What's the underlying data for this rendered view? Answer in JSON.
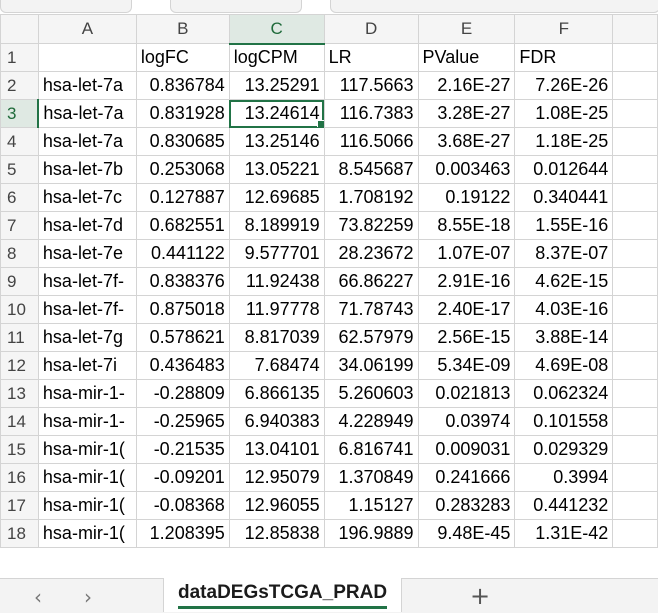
{
  "columns": [
    "A",
    "B",
    "C",
    "D",
    "E",
    "F"
  ],
  "active_cell": "C3",
  "rows": [
    {
      "n": "1",
      "cells": [
        "",
        "logFC",
        "logCPM",
        "LR",
        "PValue",
        "FDR"
      ]
    },
    {
      "n": "2",
      "cells": [
        "hsa-let-7a",
        "0.836784",
        "13.25291",
        "117.5663",
        "2.16E-27",
        "7.26E-26"
      ]
    },
    {
      "n": "3",
      "cells": [
        "hsa-let-7a",
        "0.831928",
        "13.24614",
        "116.7383",
        "3.28E-27",
        "1.08E-25"
      ]
    },
    {
      "n": "4",
      "cells": [
        "hsa-let-7a",
        "0.830685",
        "13.25146",
        "116.5066",
        "3.68E-27",
        "1.18E-25"
      ]
    },
    {
      "n": "5",
      "cells": [
        "hsa-let-7b",
        "0.253068",
        "13.05221",
        "8.545687",
        "0.003463",
        "0.012644"
      ]
    },
    {
      "n": "6",
      "cells": [
        "hsa-let-7c",
        "0.127887",
        "12.69685",
        "1.708192",
        "0.19122",
        "0.340441"
      ]
    },
    {
      "n": "7",
      "cells": [
        "hsa-let-7d",
        "0.682551",
        "8.189919",
        "73.82259",
        "8.55E-18",
        "1.55E-16"
      ]
    },
    {
      "n": "8",
      "cells": [
        "hsa-let-7e",
        "0.441122",
        "9.577701",
        "28.23672",
        "1.07E-07",
        "8.37E-07"
      ]
    },
    {
      "n": "9",
      "cells": [
        "hsa-let-7f-",
        "0.838376",
        "11.92438",
        "66.86227",
        "2.91E-16",
        "4.62E-15"
      ]
    },
    {
      "n": "10",
      "cells": [
        "hsa-let-7f-",
        "0.875018",
        "11.97778",
        "71.78743",
        "2.40E-17",
        "4.03E-16"
      ]
    },
    {
      "n": "11",
      "cells": [
        "hsa-let-7g",
        "0.578621",
        "8.817039",
        "62.57979",
        "2.56E-15",
        "3.88E-14"
      ]
    },
    {
      "n": "12",
      "cells": [
        "hsa-let-7i",
        "0.436483",
        "7.68474",
        "34.06199",
        "5.34E-09",
        "4.69E-08"
      ]
    },
    {
      "n": "13",
      "cells": [
        "hsa-mir-1-",
        "-0.28809",
        "6.866135",
        "5.260603",
        "0.021813",
        "0.062324"
      ]
    },
    {
      "n": "14",
      "cells": [
        "hsa-mir-1-",
        "-0.25965",
        "6.940383",
        "4.228949",
        "0.03974",
        "0.101558"
      ]
    },
    {
      "n": "15",
      "cells": [
        "hsa-mir-1(",
        "-0.21535",
        "13.04101",
        "6.816741",
        "0.009031",
        "0.029329"
      ]
    },
    {
      "n": "16",
      "cells": [
        "hsa-mir-1(",
        "-0.09201",
        "12.95079",
        "1.370849",
        "0.241666",
        "0.3994"
      ]
    },
    {
      "n": "17",
      "cells": [
        "hsa-mir-1(",
        "-0.08368",
        "12.96055",
        "1.15127",
        "0.283283",
        "0.441232"
      ]
    },
    {
      "n": "18",
      "cells": [
        "hsa-mir-1(",
        "1.208395",
        "12.85838",
        "196.9889",
        "9.48E-45",
        "1.31E-42"
      ]
    }
  ],
  "sheet_tab": "dataDEGsTCGA_PRAD",
  "nav": {
    "prev": "‹",
    "next": "›",
    "add": "+"
  },
  "colors": {
    "accent": "#217346",
    "grid": "#d4d4d4",
    "header_bg": "#f5f5f5"
  }
}
